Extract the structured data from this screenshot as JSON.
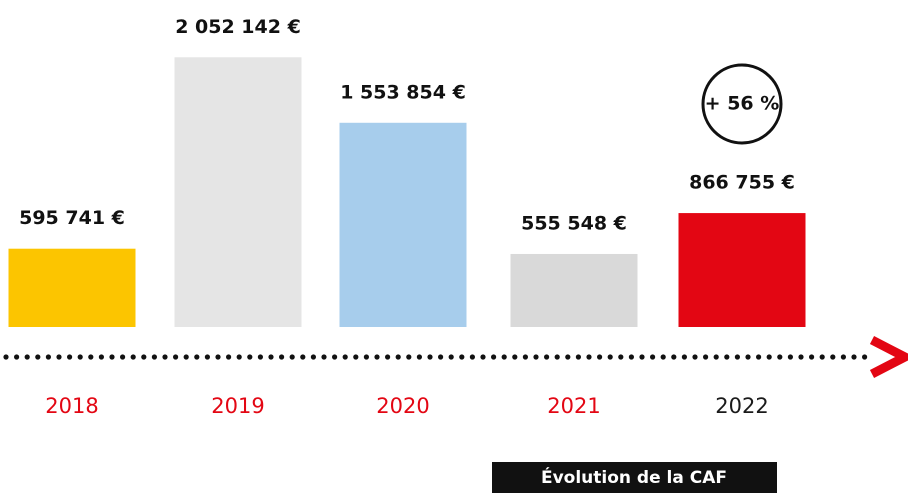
{
  "chart_data": {
    "type": "bar",
    "title": "Évolution de la CAF",
    "categories": [
      "2018",
      "2019",
      "2020",
      "2021",
      "2022"
    ],
    "values": [
      595741,
      2052142,
      1553854,
      555548,
      866755
    ],
    "value_labels": [
      "595 741 €",
      "2 052 142 €",
      "1 553 854 €",
      "555 548 €",
      "866 755 €"
    ],
    "colors": [
      "#fcc500",
      "#e5e5e5",
      "#a7cdec",
      "#d9d9d9",
      "#e30613"
    ],
    "category_colors": [
      "#e30613",
      "#e30613",
      "#e30613",
      "#e30613",
      "#1a1a1a"
    ],
    "annotation": "+ 56 %",
    "ylim": [
      0,
      2100000
    ]
  }
}
